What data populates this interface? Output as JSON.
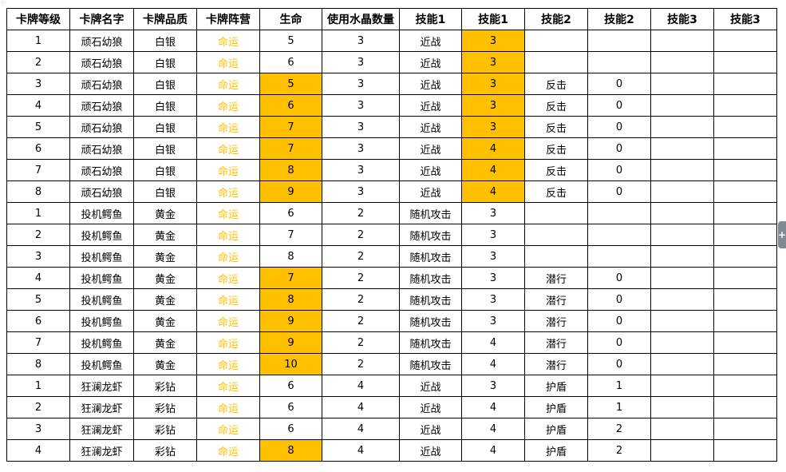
{
  "headers": [
    "卡牌等级",
    "卡牌名字",
    "卡牌品质",
    "卡牌阵营",
    "生命",
    "使用水晶数量",
    "技能1",
    "技能1",
    "技能2",
    "技能2",
    "技能3",
    "技能3"
  ],
  "rows": [
    [
      "1",
      "顽石幼狼",
      "白银",
      "命运",
      "5",
      "3",
      "近战",
      "3",
      "",
      "",
      "",
      ""
    ],
    [
      "2",
      "顽石幼狼",
      "白银",
      "命运",
      "6",
      "3",
      "近战",
      "3",
      "",
      "",
      "",
      ""
    ],
    [
      "3",
      "顽石幼狼",
      "白银",
      "命运",
      "5",
      "3",
      "近战",
      "3",
      "反击",
      "0",
      "",
      ""
    ],
    [
      "4",
      "顽石幼狼",
      "白银",
      "命运",
      "6",
      "3",
      "近战",
      "3",
      "反击",
      "0",
      "",
      ""
    ],
    [
      "5",
      "顽石幼狼",
      "白银",
      "命运",
      "7",
      "3",
      "近战",
      "3",
      "反击",
      "0",
      "",
      ""
    ],
    [
      "6",
      "顽石幼狼",
      "白银",
      "命运",
      "7",
      "3",
      "近战",
      "4",
      "反击",
      "0",
      "",
      ""
    ],
    [
      "7",
      "顽石幼狼",
      "白银",
      "命运",
      "8",
      "3",
      "近战",
      "4",
      "反击",
      "0",
      "",
      ""
    ],
    [
      "8",
      "顽石幼狼",
      "白银",
      "命运",
      "9",
      "3",
      "近战",
      "4",
      "反击",
      "0",
      "",
      ""
    ],
    [
      "1",
      "投机鳄鱼",
      "黄金",
      "命运",
      "6",
      "2",
      "随机攻击",
      "3",
      "",
      "",
      "",
      ""
    ],
    [
      "2",
      "投机鳄鱼",
      "黄金",
      "命运",
      "7",
      "2",
      "随机攻击",
      "3",
      "",
      "",
      "",
      ""
    ],
    [
      "3",
      "投机鳄鱼",
      "黄金",
      "命运",
      "8",
      "2",
      "随机攻击",
      "3",
      "",
      "",
      "",
      ""
    ],
    [
      "4",
      "投机鳄鱼",
      "黄金",
      "命运",
      "7",
      "2",
      "随机攻击",
      "3",
      "潜行",
      "0",
      "",
      ""
    ],
    [
      "5",
      "投机鳄鱼",
      "黄金",
      "命运",
      "8",
      "2",
      "随机攻击",
      "3",
      "潜行",
      "0",
      "",
      ""
    ],
    [
      "6",
      "投机鳄鱼",
      "黄金",
      "命运",
      "9",
      "2",
      "随机攻击",
      "3",
      "潜行",
      "0",
      "",
      ""
    ],
    [
      "7",
      "投机鳄鱼",
      "黄金",
      "命运",
      "9",
      "2",
      "随机攻击",
      "4",
      "潜行",
      "0",
      "",
      ""
    ],
    [
      "8",
      "投机鳄鱼",
      "黄金",
      "命运",
      "10",
      "2",
      "随机攻击",
      "4",
      "潜行",
      "0",
      "",
      ""
    ],
    [
      "1",
      "狂澜龙虾",
      "彩钻",
      "命运",
      "6",
      "4",
      "近战",
      "3",
      "护盾",
      "1",
      "",
      ""
    ],
    [
      "2",
      "狂澜龙虾",
      "彩钻",
      "命运",
      "6",
      "4",
      "近战",
      "4",
      "护盾",
      "1",
      "",
      ""
    ],
    [
      "3",
      "狂澜龙虾",
      "彩钻",
      "命运",
      "6",
      "4",
      "近战",
      "4",
      "护盾",
      "2",
      "",
      ""
    ],
    [
      "4",
      "狂澜龙虾",
      "彩钻",
      "命运",
      "8",
      "4",
      "近战",
      "4",
      "护盾",
      "2",
      "",
      ""
    ]
  ],
  "highlighted_cells": {
    "life": [
      2,
      3,
      4,
      5,
      6,
      7,
      11,
      12,
      13,
      14,
      15,
      19
    ],
    "skill1_value": [
      0,
      1,
      2,
      3,
      4,
      5,
      6,
      7
    ]
  },
  "colors": {
    "highlight": "#FFC000",
    "camp_text": "#FFC000",
    "grid": "#000000"
  }
}
